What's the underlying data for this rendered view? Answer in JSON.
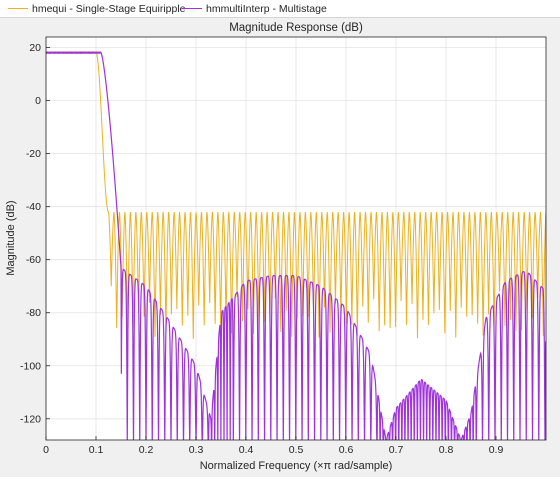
{
  "chart_data": {
    "type": "line",
    "title": "Magnitude Response (dB)",
    "xlabel": "Normalized Frequency  (×π rad/sample)",
    "ylabel": "Magnitude (dB)",
    "xlim": [
      0,
      1
    ],
    "ylim": [
      -128,
      24
    ],
    "xticks": [
      0,
      0.1,
      0.2,
      0.3,
      0.4,
      0.5,
      0.6,
      0.7,
      0.8,
      0.9
    ],
    "xtick_labels": [
      "0",
      "0.1",
      "0.2",
      "0.3",
      "0.4",
      "0.5",
      "0.6",
      "0.7",
      "0.8",
      "0.9"
    ],
    "yticks": [
      20,
      0,
      -20,
      -40,
      -60,
      -80,
      -100,
      -120
    ],
    "ytick_labels": [
      "20",
      "0",
      "-20",
      "-40",
      "-60",
      "-80",
      "-100",
      "-120"
    ],
    "grid": true,
    "legend_position": "top",
    "series": [
      {
        "name": "hmequi - Single-Stage Equiripple",
        "color": "#edb120",
        "passband_level_db": 18.1,
        "passband_edge": 0.1,
        "stopband_edge": 0.125,
        "stopband_ripple_peak_db": -42,
        "stopband_lobes": 80
      },
      {
        "name": "hmmultiInterp - Multistage",
        "color": "#9d33d9",
        "passband_level_db": 18.1,
        "passband_edge": 0.11,
        "stopband_edge": 0.15,
        "stopband_envelope": [
          [
            0.15,
            -63
          ],
          [
            0.2,
            -70
          ],
          [
            0.25,
            -84
          ],
          [
            0.3,
            -100
          ],
          [
            0.33,
            -120
          ],
          [
            0.35,
            -80
          ],
          [
            0.4,
            -68
          ],
          [
            0.45,
            -66
          ],
          [
            0.5,
            -66
          ],
          [
            0.55,
            -70
          ],
          [
            0.6,
            -78
          ],
          [
            0.65,
            -96
          ],
          [
            0.68,
            -128
          ],
          [
            0.7,
            -116
          ],
          [
            0.75,
            -105
          ],
          [
            0.8,
            -113
          ],
          [
            0.83,
            -128
          ],
          [
            0.85,
            -118
          ],
          [
            0.88,
            -82
          ],
          [
            0.92,
            -68
          ],
          [
            0.96,
            -64
          ],
          [
            1.0,
            -72
          ]
        ]
      }
    ]
  }
}
